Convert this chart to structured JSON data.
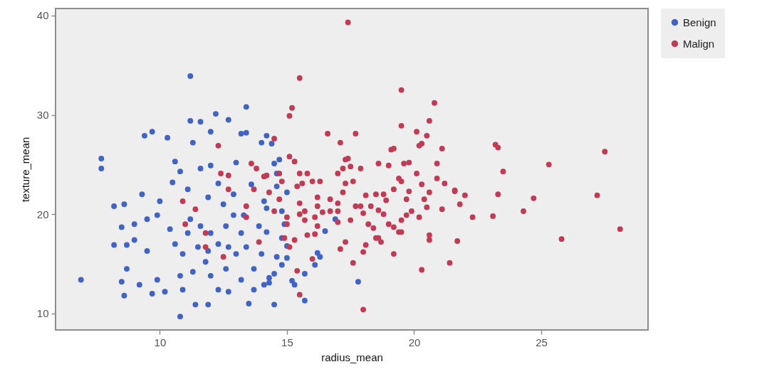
{
  "chart_data": {
    "type": "scatter",
    "xlabel": "radius_mean",
    "ylabel": "texture_mean",
    "xlim": [
      5.9,
      29.2
    ],
    "ylim": [
      8.35,
      40.7
    ],
    "xticks": [
      10,
      15,
      20,
      25
    ],
    "yticks": [
      10,
      20,
      30,
      40
    ],
    "grid": false,
    "legend": "right",
    "marker": "circle",
    "series": [
      {
        "name": "Benign",
        "color": "#4163c4",
        "x": [
          6.9,
          7.7,
          7.7,
          8.2,
          8.6,
          8.2,
          8.5,
          8.7,
          9.0,
          9.0,
          8.5,
          8.6,
          8.7,
          9.2,
          9.7,
          10.2,
          9.4,
          9.7,
          10.3,
          9.3,
          10.0,
          10.6,
          10.8,
          10.5,
          11.1,
          11.2,
          11.2,
          11.6,
          12.2,
          12.7,
          13.4,
          13.2,
          13.4,
          14.0,
          12.0,
          11.3,
          11.6,
          12.0,
          13.0,
          10.8,
          11.4,
          11.9,
          13.5,
          10.9,
          12.3,
          12.7,
          14.2,
          14.4,
          14.7,
          14.5,
          14.6,
          14.6,
          15.0,
          14.1,
          14.2,
          14.8,
          14.9,
          16.9,
          16.5,
          14.2,
          14.8,
          15.0,
          16.2,
          16.3,
          16.1,
          15.0,
          14.6,
          14.8,
          14.5,
          15.7,
          15.2,
          15.3,
          17.8,
          15.7,
          14.5,
          14.1,
          14.3,
          11.2,
          11.6,
          12.0,
          12.3,
          12.6,
          12.9,
          12.5,
          11.9,
          13.2,
          13.4,
          13.0,
          11.8,
          11.3,
          12.0,
          12.6,
          13.2,
          13.7,
          14.0,
          10.9,
          10.6,
          10.4,
          11.1,
          12.3,
          12.9,
          13.6,
          13.9,
          13.3,
          11.5,
          12.7,
          11.9,
          9.9,
          9.5,
          9.5,
          9.9,
          10.8,
          13.7,
          14.3
        ],
        "values": [
          13.4,
          25.6,
          24.6,
          20.8,
          21.0,
          16.9,
          18.7,
          16.9,
          17.4,
          19.0,
          13.2,
          11.8,
          14.5,
          12.9,
          12.0,
          12.2,
          27.9,
          28.3,
          27.7,
          22.0,
          21.3,
          25.3,
          24.3,
          23.2,
          22.5,
          33.9,
          29.4,
          29.3,
          30.1,
          29.5,
          30.8,
          28.1,
          28.2,
          27.2,
          28.3,
          27.2,
          24.6,
          24.9,
          25.2,
          9.7,
          10.9,
          10.9,
          11.0,
          12.4,
          12.4,
          12.2,
          27.9,
          27.1,
          25.5,
          25.1,
          24.1,
          22.8,
          22.2,
          21.3,
          20.6,
          20.3,
          19.0,
          19.5,
          18.3,
          18.2,
          17.6,
          16.8,
          16.1,
          15.7,
          14.9,
          15.6,
          15.7,
          14.9,
          14.0,
          14.0,
          13.3,
          12.9,
          13.2,
          11.3,
          10.9,
          12.9,
          13.6,
          19.5,
          18.8,
          18.1,
          17.0,
          18.8,
          19.9,
          21.0,
          21.7,
          18.1,
          16.7,
          16.0,
          15.2,
          14.2,
          13.8,
          14.5,
          13.4,
          14.5,
          16.0,
          16.0,
          17.0,
          18.5,
          18.1,
          23.1,
          22.0,
          23.0,
          18.8,
          19.9,
          16.7,
          16.7,
          16.3,
          19.9,
          19.5,
          16.3,
          13.4,
          13.8,
          12.4,
          13.1
        ]
      },
      {
        "name": "Malign",
        "color": "#c23b54",
        "x": [
          15.5,
          15.2,
          15.1,
          19.5,
          20.8,
          20.6,
          19.5,
          20.1,
          20.5,
          16.6,
          17.7,
          17.1,
          20.3,
          20.2,
          21.1,
          19.1,
          19.2,
          17.3,
          17.4,
          17.2,
          17.5,
          17.9,
          18.6,
          19.0,
          19.6,
          19.8,
          20.9,
          17.0,
          20.1,
          17.6,
          17.3,
          19.4,
          19.5,
          20.9,
          21.2,
          20.3,
          19.2,
          17.2,
          18.1,
          18.5,
          18.8,
          18.9,
          19.8,
          19.7,
          20.6,
          20.4,
          20.5,
          21.6,
          22.0,
          21.8,
          21.1,
          22.3,
          21.7,
          21.4,
          20.3,
          20.6,
          20.6,
          20.2,
          19.9,
          19.7,
          19.5,
          19.5,
          19.4,
          19.2,
          19.0,
          19.2,
          18.6,
          18.7,
          18.5,
          18.4,
          18.2,
          18.8,
          18.6,
          18.3,
          17.9,
          18.0,
          17.7,
          18.1,
          18.0,
          18.0,
          17.3,
          17.1,
          17.6,
          17.5,
          17.0,
          17.0,
          17.0,
          16.7,
          16.2,
          16.2,
          16.4,
          16.7,
          16.1,
          16.2,
          15.8,
          16.1,
          15.7,
          15.5,
          15.5,
          15.7,
          15.6,
          15.8,
          16.3,
          16.0,
          15.5,
          15.4,
          15.3,
          15.4,
          15.5,
          16.0,
          15.1,
          15.3,
          14.5,
          14.2,
          14.7,
          14.8,
          14.3,
          14.7,
          14.5,
          15.0,
          15.0,
          14.9,
          15.1,
          12.3,
          12.4,
          12.7,
          12.7,
          13.6,
          13.8,
          14.1,
          13.7,
          13.4,
          13.4,
          11.4,
          11.0,
          11.8,
          11.8,
          12.5,
          13.9,
          10.9,
          23.2,
          23.3,
          27.5,
          25.3,
          23.5,
          21.6,
          23.3,
          24.7,
          27.2,
          23.1,
          24.3,
          28.1,
          25.8,
          17.4
        ],
        "values": [
          33.7,
          30.7,
          29.9,
          32.5,
          31.2,
          29.4,
          28.9,
          28.3,
          27.9,
          28.1,
          28.1,
          27.2,
          27.1,
          26.9,
          26.6,
          26.5,
          26.6,
          25.5,
          25.6,
          24.6,
          24.8,
          24.6,
          25.1,
          24.9,
          25.1,
          25.2,
          25.1,
          24.1,
          24.1,
          23.3,
          23.1,
          23.6,
          23.3,
          23.6,
          23.1,
          23.0,
          22.5,
          22.2,
          21.9,
          22.0,
          22.0,
          21.4,
          22.3,
          21.5,
          22.2,
          21.5,
          20.7,
          22.4,
          21.9,
          21.0,
          20.5,
          19.7,
          17.3,
          15.1,
          14.4,
          17.9,
          17.4,
          19.7,
          20.3,
          19.9,
          19.4,
          18.2,
          18.2,
          18.7,
          19.0,
          16.0,
          17.6,
          17.2,
          17.6,
          18.6,
          19.0,
          20.0,
          20.4,
          20.8,
          20.8,
          20.1,
          20.8,
          16.9,
          16.2,
          10.4,
          17.2,
          16.5,
          15.1,
          19.4,
          19.2,
          20.3,
          21.1,
          21.5,
          21.7,
          20.8,
          20.2,
          20.3,
          19.7,
          18.8,
          17.9,
          18.0,
          20.3,
          21.1,
          20.0,
          19.4,
          23.1,
          24.1,
          23.3,
          23.3,
          24.1,
          22.8,
          17.4,
          14.3,
          11.9,
          15.5,
          25.8,
          25.3,
          27.6,
          23.9,
          24.1,
          23.3,
          22.2,
          21.5,
          20.3,
          19.7,
          19.0,
          17.6,
          16.7,
          26.9,
          24.1,
          23.9,
          22.5,
          25.1,
          24.6,
          23.8,
          22.5,
          20.8,
          19.7,
          20.5,
          19.0,
          18.1,
          16.7,
          15.7,
          17.2,
          21.3,
          27.0,
          26.7,
          26.3,
          25.0,
          24.3,
          22.3,
          22.0,
          21.6,
          21.9,
          19.8,
          20.3,
          18.5,
          17.5,
          39.3
        ]
      }
    ]
  }
}
